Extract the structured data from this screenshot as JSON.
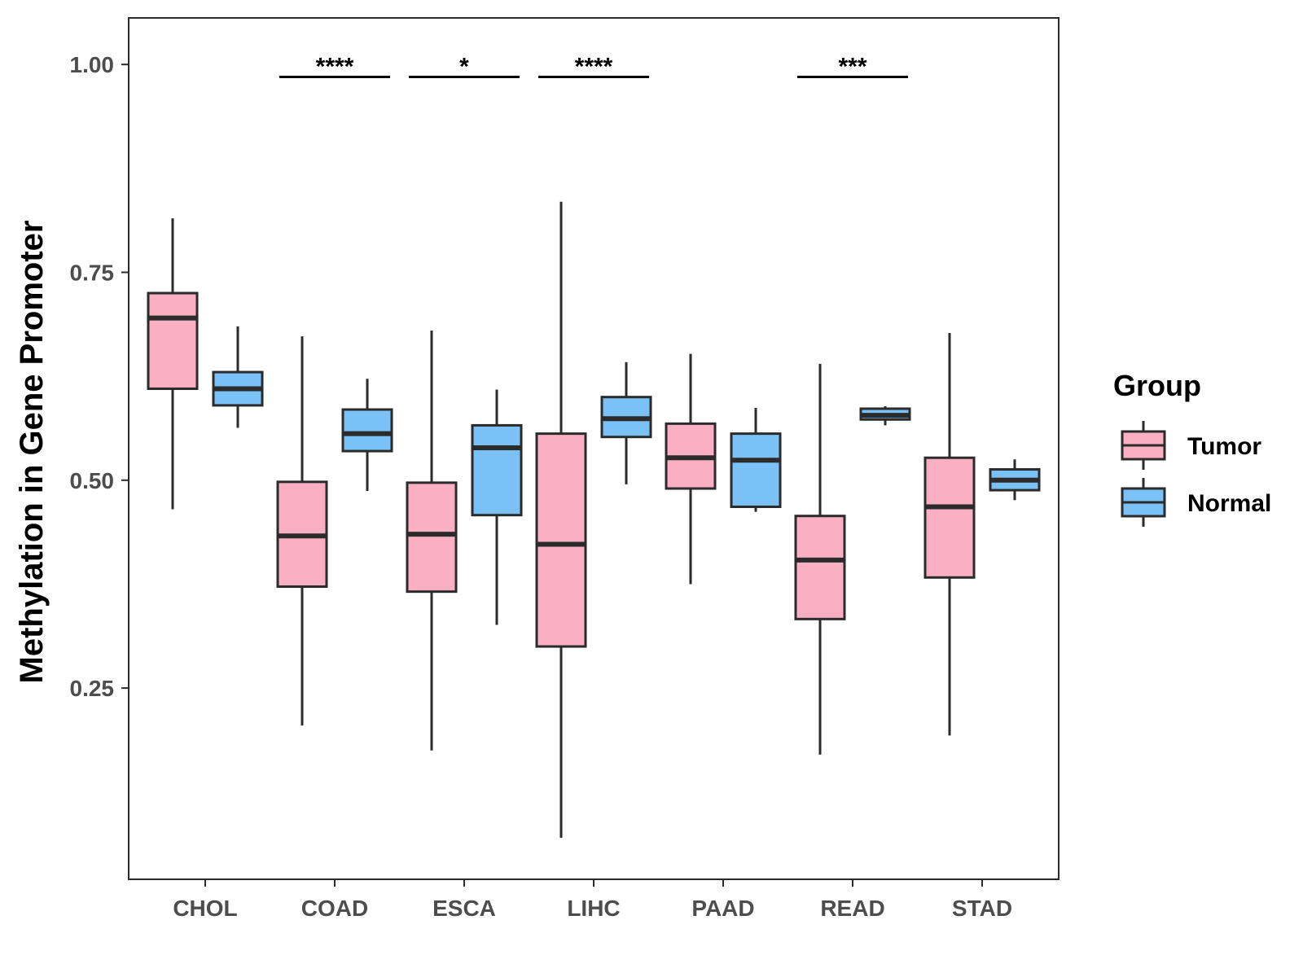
{
  "chart_data": {
    "type": "boxplot",
    "title": "",
    "xlabel": "",
    "ylabel": "Methylation in Gene Promoter",
    "ylim": [
      0.02,
      1.056
    ],
    "yticks": [
      0.25,
      0.5,
      0.75,
      1.0
    ],
    "ytick_labels": [
      "0.25",
      "0.50",
      "0.75",
      "1.00"
    ],
    "categories": [
      "CHOL",
      "COAD",
      "ESCA",
      "LIHC",
      "PAAD",
      "READ",
      "STAD"
    ],
    "grid": false,
    "legend": {
      "title": "Group",
      "placement": "right",
      "entries": [
        "Tumor",
        "Normal"
      ]
    },
    "colors": {
      "Tumor": "#FBAFC3",
      "Normal": "#79C1F6",
      "stroke": "#2b2b2b"
    },
    "series": [
      {
        "name": "Tumor",
        "boxes": [
          {
            "category": "CHOL",
            "whisker_low": 0.465,
            "q1": 0.61,
            "median": 0.695,
            "q3": 0.725,
            "whisker_high": 0.815
          },
          {
            "category": "COAD",
            "whisker_low": 0.205,
            "q1": 0.372,
            "median": 0.433,
            "q3": 0.498,
            "whisker_high": 0.673
          },
          {
            "category": "ESCA",
            "whisker_low": 0.175,
            "q1": 0.366,
            "median": 0.435,
            "q3": 0.497,
            "whisker_high": 0.68
          },
          {
            "category": "LIHC",
            "whisker_low": 0.07,
            "q1": 0.3,
            "median": 0.423,
            "q3": 0.556,
            "whisker_high": 0.835
          },
          {
            "category": "PAAD",
            "whisker_low": 0.375,
            "q1": 0.49,
            "median": 0.527,
            "q3": 0.568,
            "whisker_high": 0.652
          },
          {
            "category": "READ",
            "whisker_low": 0.17,
            "q1": 0.333,
            "median": 0.404,
            "q3": 0.457,
            "whisker_high": 0.64
          },
          {
            "category": "STAD",
            "whisker_low": 0.193,
            "q1": 0.383,
            "median": 0.468,
            "q3": 0.527,
            "whisker_high": 0.677
          }
        ]
      },
      {
        "name": "Normal",
        "boxes": [
          {
            "category": "CHOL",
            "whisker_low": 0.563,
            "q1": 0.59,
            "median": 0.61,
            "q3": 0.63,
            "whisker_high": 0.685
          },
          {
            "category": "COAD",
            "whisker_low": 0.487,
            "q1": 0.535,
            "median": 0.556,
            "q3": 0.585,
            "whisker_high": 0.622
          },
          {
            "category": "ESCA",
            "whisker_low": 0.326,
            "q1": 0.458,
            "median": 0.539,
            "q3": 0.566,
            "whisker_high": 0.609
          },
          {
            "category": "LIHC",
            "whisker_low": 0.495,
            "q1": 0.552,
            "median": 0.574,
            "q3": 0.6,
            "whisker_high": 0.642
          },
          {
            "category": "PAAD",
            "whisker_low": 0.462,
            "q1": 0.468,
            "median": 0.524,
            "q3": 0.556,
            "whisker_high": 0.587
          },
          {
            "category": "READ",
            "whisker_low": 0.566,
            "q1": 0.573,
            "median": 0.578,
            "q3": 0.586,
            "whisker_high": 0.589
          },
          {
            "category": "STAD",
            "whisker_low": 0.476,
            "q1": 0.488,
            "median": 0.5,
            "q3": 0.513,
            "whisker_high": 0.525
          }
        ]
      }
    ],
    "significance": [
      {
        "category": "COAD",
        "label": "****",
        "y": 0.985
      },
      {
        "category": "ESCA",
        "label": "*",
        "y": 0.985
      },
      {
        "category": "LIHC",
        "label": "****",
        "y": 0.985
      },
      {
        "category": "READ",
        "label": "***",
        "y": 0.985
      }
    ]
  }
}
